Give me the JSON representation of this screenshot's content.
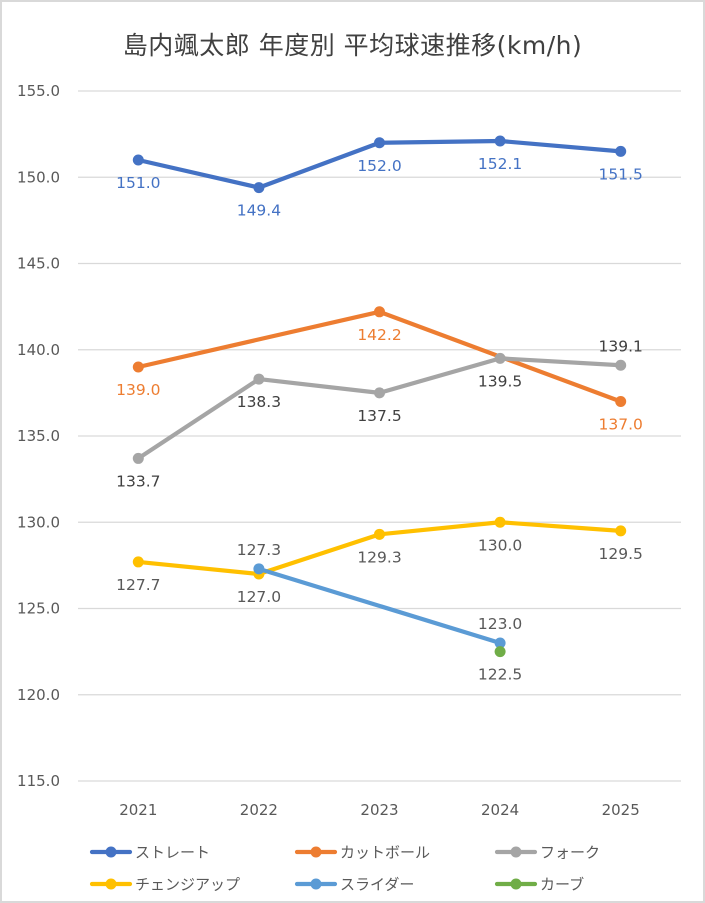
{
  "chart_data": {
    "type": "line",
    "title": "島内颯太郎 年度別 平均球速推移(km/h)",
    "xlabel": "",
    "ylabel": "",
    "categories": [
      "2021",
      "2022",
      "2023",
      "2024",
      "2025"
    ],
    "ylim": [
      115.0,
      155.0
    ],
    "yticks": [
      "115.0",
      "120.0",
      "125.0",
      "130.0",
      "135.0",
      "140.0",
      "145.0",
      "150.0",
      "155.0"
    ],
    "ytick_values": [
      115,
      120,
      125,
      130,
      135,
      140,
      145,
      150,
      155
    ],
    "grid": true,
    "legend_position": "bottom",
    "series": [
      {
        "name": "ストレート",
        "color": "#4472c4",
        "label_color": "#4472c4",
        "values": [
          151.0,
          149.4,
          152.0,
          152.1,
          151.5
        ],
        "labels": [
          "151.0",
          "149.4",
          "152.0",
          "152.1",
          "151.5"
        ],
        "label_pos": [
          "below",
          "below",
          "below",
          "below",
          "below"
        ]
      },
      {
        "name": "カットボール",
        "color": "#ed7d31",
        "label_color": "#ed7d31",
        "values": [
          139.0,
          null,
          142.2,
          null,
          137.0
        ],
        "labels": [
          "139.0",
          "",
          "142.2",
          "",
          "137.0"
        ],
        "label_pos": [
          "below",
          "below",
          "below",
          "below",
          "below"
        ]
      },
      {
        "name": "フォーク",
        "color": "#a5a5a5",
        "label_color": "#404040",
        "values": [
          133.7,
          138.3,
          137.5,
          139.5,
          139.1
        ],
        "labels": [
          "133.7",
          "138.3",
          "137.5",
          "139.5",
          "139.1"
        ],
        "label_pos": [
          "below",
          "below",
          "below",
          "below",
          "above"
        ]
      },
      {
        "name": "チェンジアップ",
        "color": "#ffc000",
        "label_color": "#595959",
        "values": [
          127.7,
          127.0,
          129.3,
          130.0,
          129.5
        ],
        "labels": [
          "127.7",
          "127.0",
          "129.3",
          "130.0",
          "129.5"
        ],
        "label_pos": [
          "below",
          "below",
          "below",
          "below",
          "below"
        ]
      },
      {
        "name": "スライダー",
        "color": "#5b9bd5",
        "label_color": "#595959",
        "values": [
          null,
          127.3,
          null,
          123.0,
          null
        ],
        "labels": [
          "",
          "127.3",
          "",
          "123.0",
          ""
        ],
        "label_pos": [
          "above",
          "above",
          "above",
          "above",
          "above"
        ]
      },
      {
        "name": "カーブ",
        "color": "#70ad47",
        "label_color": "#595959",
        "values": [
          null,
          null,
          null,
          122.5,
          null
        ],
        "labels": [
          "",
          "",
          "",
          "122.5",
          ""
        ],
        "label_pos": [
          "below",
          "below",
          "below",
          "below",
          "below"
        ]
      }
    ]
  }
}
